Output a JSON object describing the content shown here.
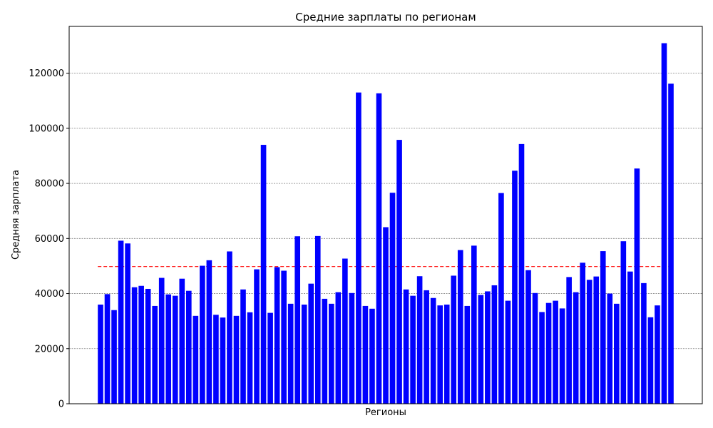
{
  "chart_data": {
    "type": "bar",
    "title": "Средние зарплаты по регионам",
    "xlabel": "Регионы",
    "ylabel": "Средняя зарплата",
    "ylim": [
      0,
      137000
    ],
    "yticks": [
      0,
      20000,
      40000,
      60000,
      80000,
      100000,
      120000
    ],
    "grid": "y-dashed",
    "bar_color": "#0000ff",
    "mean_line": {
      "value": 49800,
      "color": "#ff0000",
      "style": "dashed"
    },
    "values": [
      36000,
      39800,
      34000,
      59200,
      58200,
      42300,
      42800,
      41700,
      35500,
      45700,
      39700,
      39200,
      45400,
      41000,
      31900,
      50100,
      52100,
      32300,
      31300,
      55300,
      31900,
      41500,
      33200,
      48800,
      94000,
      33000,
      49600,
      48300,
      36300,
      60800,
      36000,
      43600,
      60900,
      38100,
      36300,
      40500,
      52700,
      40200,
      113000,
      35500,
      34500,
      112700,
      64100,
      76600,
      95800,
      41500,
      39200,
      46300,
      41200,
      38400,
      35700,
      36000,
      46500,
      55800,
      35500,
      57400,
      39500,
      40800,
      43000,
      76500,
      37400,
      84600,
      94300,
      48500,
      40200,
      33300,
      36600,
      37400,
      34600,
      46000,
      40500,
      51200,
      45000,
      46200,
      55400,
      40000,
      36300,
      59000,
      48000,
      85400,
      43800,
      31400,
      35700,
      130900,
      116200
    ]
  }
}
